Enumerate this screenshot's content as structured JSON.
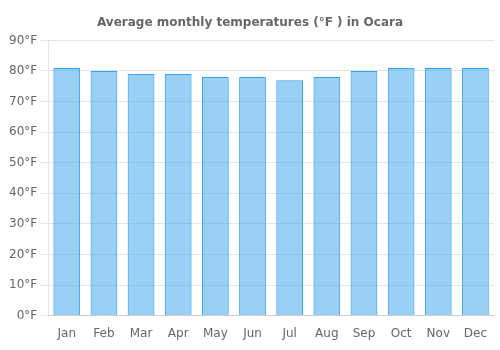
{
  "chart_data": {
    "type": "bar",
    "title": "Average monthly temperatures (°F ) in Ocara",
    "categories": [
      "Jan",
      "Feb",
      "Mar",
      "Apr",
      "May",
      "Jun",
      "Jul",
      "Aug",
      "Sep",
      "Oct",
      "Nov",
      "Dec"
    ],
    "values": [
      81,
      80,
      79,
      79,
      78,
      78,
      77,
      78,
      80,
      81,
      81,
      81
    ],
    "ylim": [
      0,
      90
    ],
    "yticks": [
      {
        "value": 0,
        "label": "0°F"
      },
      {
        "value": 10,
        "label": "10°F"
      },
      {
        "value": 20,
        "label": "20°F"
      },
      {
        "value": 30,
        "label": "30°F"
      },
      {
        "value": 40,
        "label": "40°F"
      },
      {
        "value": 50,
        "label": "50°F"
      },
      {
        "value": 60,
        "label": "60°F"
      },
      {
        "value": 70,
        "label": "70°F"
      },
      {
        "value": 80,
        "label": "80°F"
      },
      {
        "value": 90,
        "label": "90°F"
      }
    ],
    "grid": true
  }
}
